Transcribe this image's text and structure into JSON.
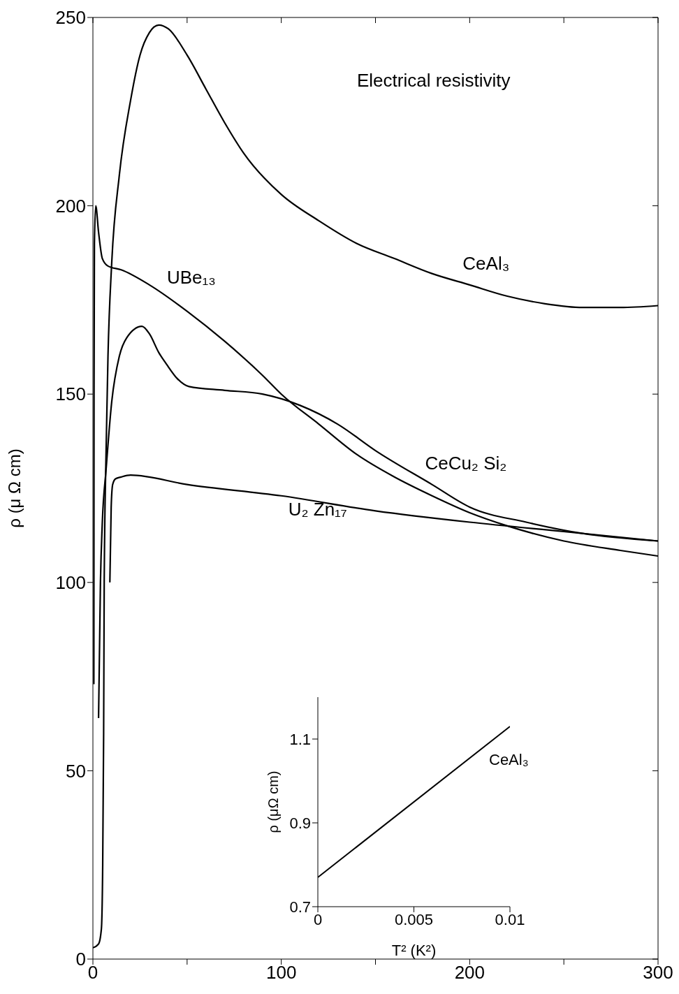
{
  "chart_data": [
    {
      "type": "line",
      "ylabel": "ρ (μ Ω cm)",
      "annotations": [
        "Electrical resistivity"
      ],
      "xlim": [
        0,
        300
      ],
      "xticks": [
        0,
        {
          "value": 50,
          "label": null
        },
        100,
        {
          "value": 150,
          "label": null
        },
        200,
        {
          "value": 250,
          "label": null
        },
        300
      ],
      "ylim": [
        0,
        250
      ],
      "yticks": [
        0,
        50,
        100,
        150,
        200,
        250
      ],
      "grid": false,
      "legend": false,
      "marker": "none",
      "line_style": "solid",
      "series": [
        {
          "name": "CeAl₃",
          "color": "#000000",
          "x": [
            0,
            3,
            4.5,
            5.2,
            5.7,
            6,
            7,
            8,
            10,
            14,
            20,
            25,
            30,
            35,
            40,
            50,
            60,
            70,
            80,
            100,
            120,
            140,
            160,
            180,
            200,
            220,
            240,
            260,
            280,
            300
          ],
          "values": [
            3,
            4,
            8,
            25,
            60,
            100,
            135,
            160,
            185,
            208,
            228,
            240,
            246,
            248,
            247,
            240,
            231,
            222,
            214,
            203,
            196,
            190,
            186,
            182,
            179,
            176,
            174,
            173,
            173,
            173.5
          ]
        },
        {
          "name": "UBe₁₃",
          "color": "#000000",
          "x": [
            0.5,
            0.6,
            0.8,
            1.5,
            3,
            5,
            8,
            15,
            30,
            50,
            70,
            90,
            100,
            120,
            140,
            160,
            180,
            200,
            220,
            250,
            280,
            300
          ],
          "values": [
            73,
            150,
            190,
            200,
            193,
            186,
            184,
            183,
            179,
            172,
            164,
            155,
            150,
            142,
            134,
            128,
            123,
            118.5,
            115,
            111,
            108.5,
            107
          ]
        },
        {
          "name": "CeCu₂ Si₂",
          "color": "#000000",
          "x": [
            3,
            4,
            5,
            7,
            10,
            14,
            18,
            26,
            30,
            35,
            39,
            45,
            51,
            70,
            90,
            110,
            130,
            150,
            180,
            200,
            230,
            260,
            300
          ],
          "values": [
            64,
            100,
            116,
            130,
            148,
            160,
            165,
            168,
            166,
            161,
            158,
            154,
            152,
            151,
            150,
            147,
            142,
            135,
            126,
            120,
            116,
            113,
            111
          ]
        },
        {
          "name": "U₂ Zn₁₇",
          "color": "#000000",
          "x": [
            9,
            9.7,
            10.5,
            12,
            15,
            20,
            50,
            100,
            150,
            200,
            250,
            300
          ],
          "values": [
            100,
            120,
            126,
            127.5,
            128,
            128.5,
            126,
            123,
            119,
            116,
            113.5,
            111
          ]
        }
      ]
    },
    {
      "type": "line",
      "xlabel": "T² (K²)",
      "ylabel": "ρ (μΩ cm)",
      "xlim": [
        0,
        0.01
      ],
      "xticks": [
        0,
        0.005,
        0.01
      ],
      "ylim": [
        0.7,
        1.2
      ],
      "yticks": [
        0.7,
        0.9,
        1.1
      ],
      "grid": false,
      "legend": false,
      "marker": "none",
      "line_style": "solid",
      "series": [
        {
          "name": "CeAl₃",
          "color": "#000000",
          "x": [
            0,
            0.01
          ],
          "values": [
            0.77,
            1.13
          ]
        }
      ]
    }
  ]
}
